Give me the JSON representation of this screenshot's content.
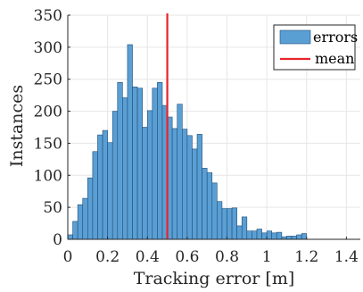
{
  "chart_data": {
    "type": "bar",
    "subtype": "histogram",
    "title": "",
    "xlabel": "Tracking error [m]",
    "ylabel": "Instances",
    "xlim": [
      0,
      1.47
    ],
    "ylim": [
      0,
      350
    ],
    "xticks": [
      0,
      0.2,
      0.4,
      0.6,
      0.8,
      1,
      1.2,
      1.4
    ],
    "xtick_labels": [
      "0",
      "0.2",
      "0.4",
      "0.6",
      "0.8",
      "1",
      "1.2",
      "1.4"
    ],
    "yticks": [
      0,
      50,
      100,
      150,
      200,
      250,
      300,
      350
    ],
    "ytick_labels": [
      "0",
      "50",
      "100",
      "150",
      "200",
      "250",
      "300",
      "350"
    ],
    "grid": true,
    "legend_position": "top-right",
    "bin_width": 0.025,
    "bin_start": 0,
    "series": [
      {
        "name": "errors",
        "color": "#5a9fd4",
        "values": [
          7,
          28,
          54,
          64,
          96,
          137,
          163,
          170,
          151,
          200,
          245,
          221,
          304,
          238,
          236,
          175,
          201,
          236,
          245,
          209,
          191,
          173,
          211,
          172,
          162,
          141,
          164,
          111,
          104,
          88,
          59,
          48,
          48,
          49,
          21,
          35,
          13,
          13,
          16,
          10,
          13,
          10,
          11,
          4,
          5,
          5,
          7,
          9
        ]
      }
    ],
    "reference_lines": [
      {
        "name": "mean",
        "x": 0.5,
        "color": "#e8242a"
      }
    ]
  }
}
